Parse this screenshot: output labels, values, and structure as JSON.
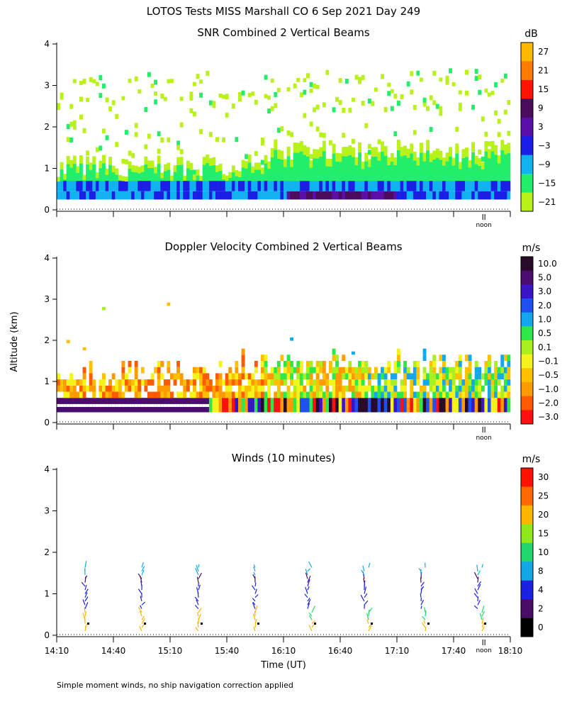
{
  "page_title": "LOTOS Tests MISS Marshall CO   6 Sep 2021 Day 249",
  "ylabel": "Altitude (km)",
  "xlabel": "Time (UT)",
  "footnote": "Simple moment winds, no ship navigation correction applied",
  "noon_label": "noon",
  "chart_data": [
    {
      "id": "snr",
      "type": "heatmap",
      "title": "SNR Combined 2 Vertical Beams",
      "colorbar_unit": "dB",
      "colorbar_ticks": [
        "27",
        "21",
        "15",
        "9",
        "3",
        "−3",
        "−9",
        "−15",
        "−21"
      ],
      "colorbar_colors": [
        "#ffb800",
        "#ff7a00",
        "#ff1400",
        "#4b0c5e",
        "#5a0fa8",
        "#1b1ee6",
        "#11b2f0",
        "#22ee6c",
        "#b8f21a"
      ],
      "x_range_minutes": [
        850,
        1090
      ],
      "ylim": [
        0,
        4
      ],
      "yticks": [
        "0",
        "1",
        "2",
        "3",
        "4"
      ],
      "noon_marker_minutes": 1076
    },
    {
      "id": "doppler",
      "type": "heatmap",
      "title": "Doppler Velocity Combined 2 Vertical Beams",
      "colorbar_unit": "m/s",
      "colorbar_ticks": [
        "10.0",
        "5.0",
        "3.0",
        "2.0",
        "1.0",
        "0.5",
        "0.1",
        "−0.1",
        "−0.5",
        "−1.0",
        "−2.0",
        "−3.0"
      ],
      "colorbar_colors": [
        "#2a0a2a",
        "#4b0c6e",
        "#3b14c8",
        "#1f50f0",
        "#13a8ee",
        "#2ee84a",
        "#a8f020",
        "#f4f41c",
        "#ffc000",
        "#ff9a00",
        "#ff5a00",
        "#ff1010"
      ],
      "x_range_minutes": [
        850,
        1090
      ],
      "ylim": [
        0,
        4
      ],
      "yticks": [
        "0",
        "1",
        "2",
        "3",
        "4"
      ],
      "noon_marker_minutes": 1076
    },
    {
      "id": "winds",
      "type": "scatter",
      "title": "Winds (10 minutes)",
      "colorbar_unit": "m/s",
      "colorbar_ticks": [
        "30",
        "25",
        "20",
        "15",
        "10",
        "8",
        "4",
        "2",
        "0"
      ],
      "colorbar_colors": [
        "#ff1200",
        "#ff6a00",
        "#ffb400",
        "#8ee81a",
        "#22d76a",
        "#12a8e8",
        "#1a22e0",
        "#4a0c64",
        "#000000"
      ],
      "x_range_minutes": [
        850,
        1090
      ],
      "ylim": [
        0,
        4
      ],
      "yticks": [
        "0",
        "1",
        "2",
        "3",
        "4"
      ],
      "xtick_labels": [
        "14:10",
        "14:40",
        "15:10",
        "15:40",
        "16:10",
        "16:40",
        "17:10",
        "17:40",
        "18:10"
      ],
      "noon_marker_minutes": 1076,
      "profile_times_minutes": [
        865,
        895,
        925,
        955,
        985,
        1015,
        1045,
        1075
      ]
    }
  ]
}
